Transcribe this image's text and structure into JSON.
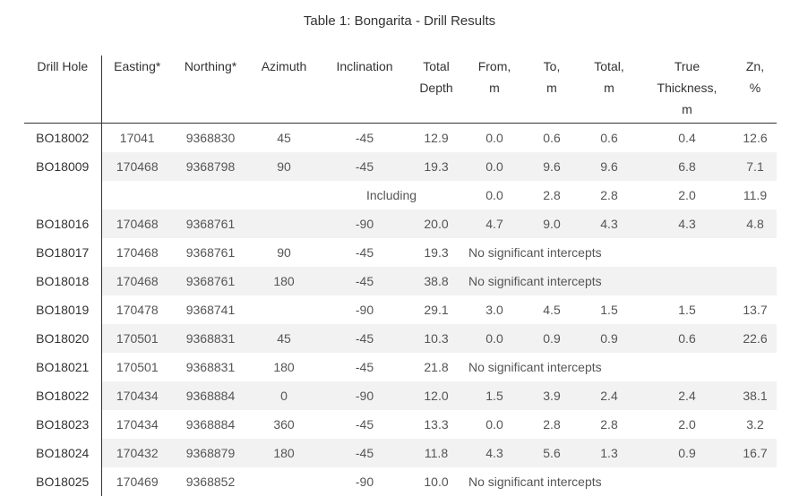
{
  "caption": "Table 1: Bongarita - Drill Results",
  "headers": {
    "drill_hole": "Drill Hole",
    "easting": "Easting*",
    "northing": "Northing*",
    "azimuth": "Azimuth",
    "inclination": "Inclination",
    "total_depth_1": "Total",
    "total_depth_2": "Depth",
    "from_1": "From,",
    "from_2": "m",
    "to_1": "To,",
    "to_2": "m",
    "total_1": "Total,",
    "total_2": "m",
    "thick_1": "True",
    "thick_2": "Thickness,",
    "thick_3": "m",
    "zn_1": "Zn,",
    "zn_2": "%"
  },
  "rows": [
    {
      "hole": "BO18002",
      "easting": "17041",
      "northing": "9368830",
      "azimuth": "45",
      "inclination": "-45",
      "depth": "12.9",
      "from": "0.0",
      "to": "0.6",
      "total": "0.6",
      "thickness": "0.4",
      "zn": "12.6"
    },
    {
      "hole": "BO18009",
      "easting": "170468",
      "northing": "9368798",
      "azimuth": "90",
      "inclination": "-45",
      "depth": "19.3",
      "from": "0.0",
      "to": "9.6",
      "total": "9.6",
      "thickness": "6.8",
      "zn": "7.1"
    },
    {
      "label": "Including",
      "from": "0.0",
      "to": "2.8",
      "total": "2.8",
      "thickness": "2.0",
      "zn": "11.9"
    },
    {
      "hole": "BO18016",
      "easting": "170468",
      "northing": "9368761",
      "azimuth": "",
      "inclination": "-90",
      "depth": "20.0",
      "from": "4.7",
      "to": "9.0",
      "total": "4.3",
      "thickness": "4.3",
      "zn": "4.8"
    },
    {
      "hole": "BO18017",
      "easting": "170468",
      "northing": "9368761",
      "azimuth": "90",
      "inclination": "-45",
      "depth": "19.3",
      "note": "No significant intercepts"
    },
    {
      "hole": "BO18018",
      "easting": "170468",
      "northing": "9368761",
      "azimuth": "180",
      "inclination": "-45",
      "depth": "38.8",
      "note": "No significant intercepts"
    },
    {
      "hole": "BO18019",
      "easting": "170478",
      "northing": "9368741",
      "azimuth": "",
      "inclination": "-90",
      "depth": "29.1",
      "from": "3.0",
      "to": "4.5",
      "total": "1.5",
      "thickness": "1.5",
      "zn": "13.7"
    },
    {
      "hole": "BO18020",
      "easting": "170501",
      "northing": "9368831",
      "azimuth": "45",
      "inclination": "-45",
      "depth": "10.3",
      "from": "0.0",
      "to": "0.9",
      "total": "0.9",
      "thickness": "0.6",
      "zn": "22.6"
    },
    {
      "hole": "BO18021",
      "easting": "170501",
      "northing": "9368831",
      "azimuth": "180",
      "inclination": "-45",
      "depth": "21.8",
      "note": "No significant intercepts"
    },
    {
      "hole": "BO18022",
      "easting": "170434",
      "northing": "9368884",
      "azimuth": "0",
      "inclination": "-90",
      "depth": "12.0",
      "from": "1.5",
      "to": "3.9",
      "total": "2.4",
      "thickness": "2.4",
      "zn": "38.1"
    },
    {
      "hole": "BO18023",
      "easting": "170434",
      "northing": "9368884",
      "azimuth": "360",
      "inclination": "-45",
      "depth": "13.3",
      "from": "0.0",
      "to": "2.8",
      "total": "2.8",
      "thickness": "2.0",
      "zn": "3.2"
    },
    {
      "hole": "BO18024",
      "easting": "170432",
      "northing": "9368879",
      "azimuth": "180",
      "inclination": "-45",
      "depth": "11.8",
      "from": "4.3",
      "to": "5.6",
      "total": "1.3",
      "thickness": "0.9",
      "zn": "16.7"
    },
    {
      "hole": "BO18025",
      "easting": "170469",
      "northing": "9368852",
      "azimuth": "",
      "inclination": "-90",
      "depth": "10.0",
      "note": "No significant intercepts"
    }
  ]
}
